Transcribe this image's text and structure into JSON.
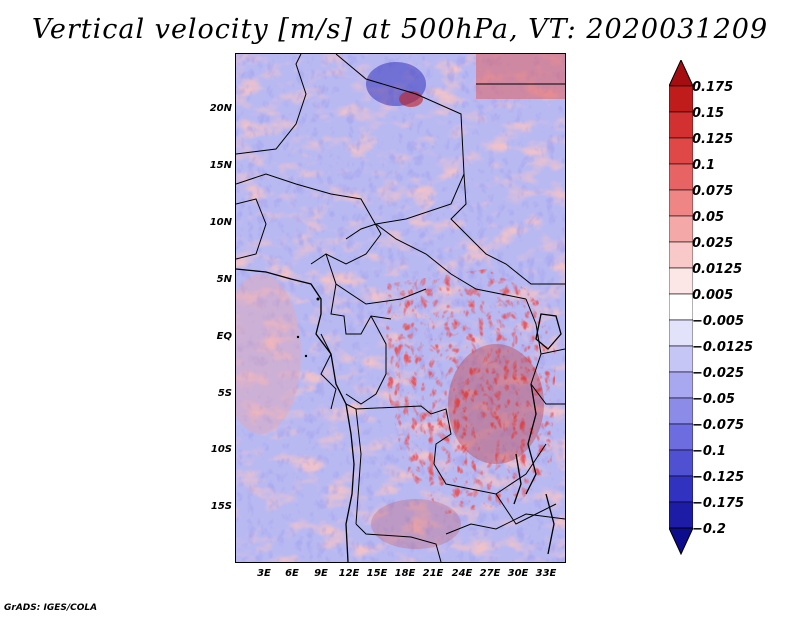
{
  "title": "Vertical velocity [m/s] at 500hPa, VT: 2020031209",
  "credit": "GrADS: IGES/COLA",
  "lat_labels": [
    "20N",
    "15N",
    "10N",
    "5N",
    "EQ",
    "5S",
    "10S",
    "15S"
  ],
  "lon_labels": [
    "3E",
    "6E",
    "9E",
    "12E",
    "15E",
    "18E",
    "21E",
    "24E",
    "27E",
    "30E",
    "33E"
  ],
  "colorbar": {
    "labels": [
      "0.175",
      "0.15",
      "0.125",
      "0.1",
      "0.075",
      "0.05",
      "0.025",
      "0.0125",
      "0.005",
      "−0.005",
      "−0.0125",
      "−0.025",
      "−0.05",
      "−0.075",
      "−0.1",
      "−0.125",
      "−0.175",
      "−0.2"
    ],
    "colors": [
      "#a40e10",
      "#c01c1c",
      "#d33131",
      "#e04848",
      "#e86464",
      "#ef8585",
      "#f5a8a8",
      "#f9c8c8",
      "#fde6e6",
      "#ffffff",
      "#e2e2fb",
      "#c6c6f6",
      "#a8a8f0",
      "#8c8ce8",
      "#6d6de0",
      "#5050d2",
      "#3232c0",
      "#1c1ca6",
      "#0c0c8c"
    ]
  }
}
